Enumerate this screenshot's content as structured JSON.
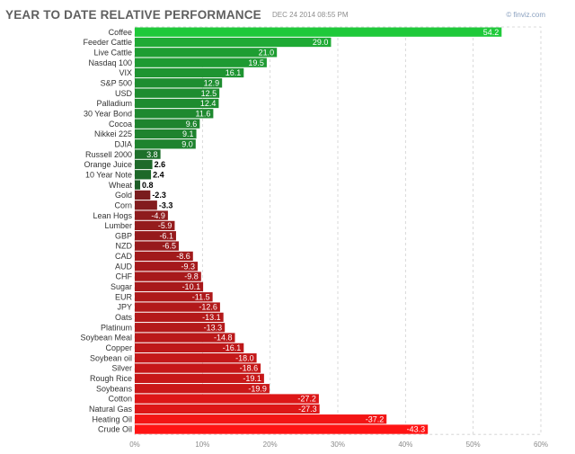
{
  "header": {
    "title": "YEAR TO DATE RELATIVE PERFORMANCE",
    "timestamp": "DEC 24 2014 08:55 PM",
    "credit": "© finviz.com"
  },
  "chart_data": {
    "type": "bar",
    "orientation": "horizontal",
    "categories": [
      "Coffee",
      "Feeder Cattle",
      "Live Cattle",
      "Nasdaq 100",
      "VIX",
      "S&P 500",
      "USD",
      "Palladium",
      "30 Year Bond",
      "Cocoa",
      "Nikkei 225",
      "DJIA",
      "Russell 2000",
      "Orange Juice",
      "10 Year Note",
      "Wheat",
      "Gold",
      "Corn",
      "Lean Hogs",
      "Lumber",
      "GBP",
      "NZD",
      "CAD",
      "AUD",
      "CHF",
      "Sugar",
      "EUR",
      "JPY",
      "Oats",
      "Platinum",
      "Soybean Meal",
      "Copper",
      "Soybean oil",
      "Silver",
      "Rough Rice",
      "Soybeans",
      "Cotton",
      "Natural Gas",
      "Heating Oil",
      "Crude Oil"
    ],
    "values": [
      54.2,
      29.0,
      21.0,
      19.5,
      16.1,
      12.9,
      12.5,
      12.4,
      11.6,
      9.6,
      9.1,
      9.0,
      3.8,
      2.6,
      2.4,
      0.8,
      -2.3,
      -3.3,
      -4.9,
      -5.9,
      -6.1,
      -6.5,
      -8.6,
      -9.3,
      -9.8,
      -10.1,
      -11.5,
      -12.6,
      -13.1,
      -13.3,
      -14.8,
      -16.1,
      -18.0,
      -18.6,
      -19.1,
      -19.9,
      -27.2,
      -27.3,
      -37.2,
      -43.3
    ],
    "value_labels": [
      "54.2",
      "29.0",
      "21.0",
      "19.5",
      "16.1",
      "12.9",
      "12.5",
      "12.4",
      "11.6",
      "9.6",
      "9.1",
      "9.0",
      "3.8",
      "2.6",
      "2.4",
      "0.8",
      "-2.3",
      "-3.3",
      "-4.9",
      "-5.9",
      "-6.1",
      "-6.5",
      "-8.6",
      "-9.3",
      "-9.8",
      "-10.1",
      "-11.5",
      "-12.6",
      "-13.1",
      "-13.3",
      "-14.8",
      "-16.1",
      "-18.0",
      "-18.6",
      "-19.1",
      "-19.9",
      "-27.2",
      "-27.3",
      "-37.2",
      "-43.3"
    ],
    "x_ticks": [
      "0%",
      "10%",
      "20%",
      "30%",
      "40%",
      "50%",
      "60%"
    ],
    "xlim": [
      0,
      60
    ],
    "bar_length": "absolute value",
    "grid": "vertical dashed",
    "colors": {
      "positive_strong": "#1fc93a",
      "positive_weak": "#1d4a24",
      "negative_weak": "#4a1f22",
      "negative_strong": "#ff1414",
      "grid": "#cfcfcf",
      "label": "#333333"
    }
  }
}
